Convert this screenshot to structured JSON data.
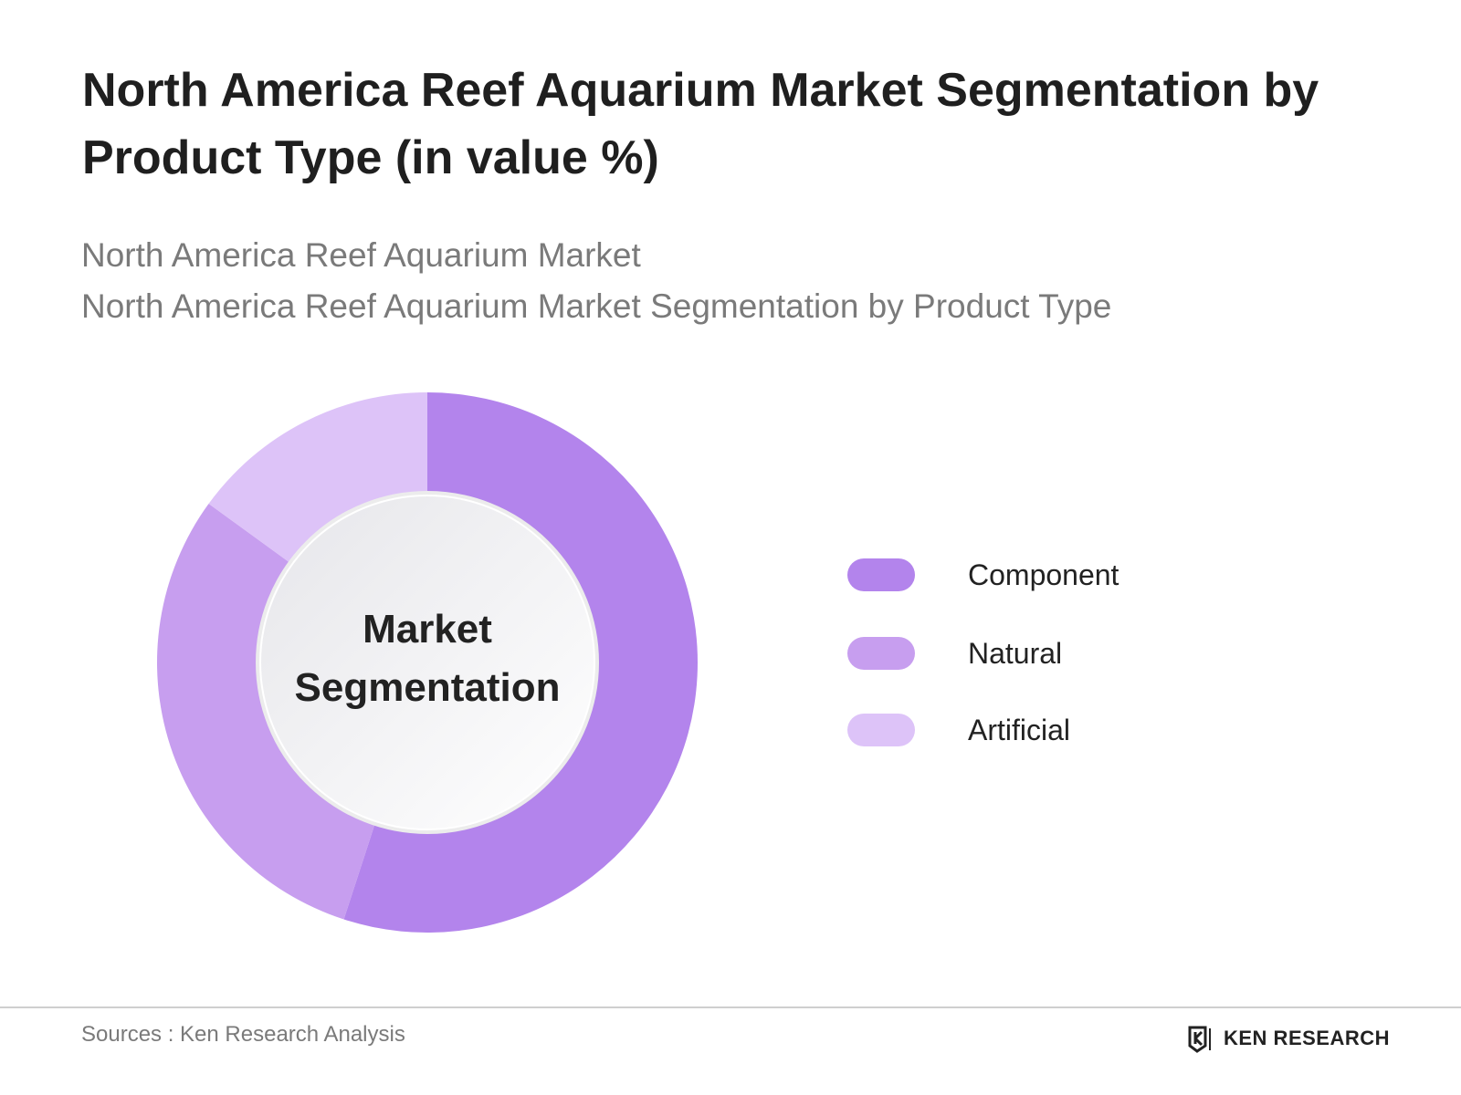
{
  "title": "North America Reef Aquarium Market Segmentation by Product Type (in value %)",
  "subtitle_1": "North America Reef Aquarium Market",
  "subtitle_2": "North America Reef Aquarium Market Segmentation by Product Type",
  "center_label_line1": "Market",
  "center_label_line2": "Segmentation",
  "footer": {
    "source": "Sources : Ken Research Analysis",
    "brand": "KEN RESEARCH"
  },
  "colors": {
    "Component": "#b384ec",
    "Natural": "#c79eef",
    "Artificial": "#ddc3f8"
  },
  "chart_data": {
    "type": "pie",
    "style": "donut",
    "categories": [
      "Component",
      "Natural",
      "Artificial"
    ],
    "values": [
      55,
      30,
      15
    ],
    "legend_position": "right"
  }
}
